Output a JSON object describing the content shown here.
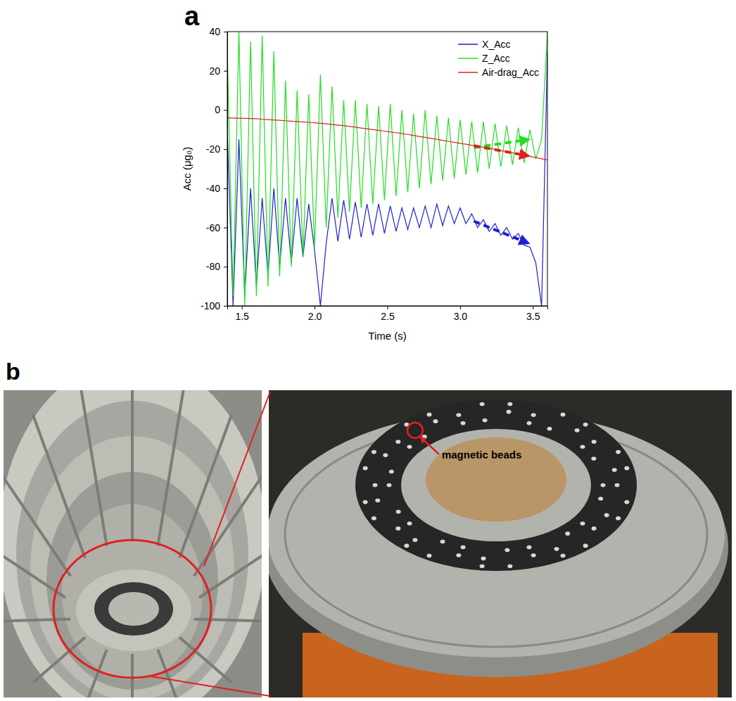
{
  "chart_data": {
    "type": "line",
    "panel_label": "a",
    "x_label": "Time (s)",
    "y_label": "Acc (μg₀)",
    "xlim": [
      1.4,
      3.6
    ],
    "xticks": [
      1.5,
      {
        "value": 2,
        "label": "2.0"
      },
      2.5,
      {
        "value": 3,
        "label": "3.0"
      },
      3.5
    ],
    "ylim": [
      -100,
      40
    ],
    "yticks": [
      -100,
      -80,
      -60,
      -40,
      -20,
      0,
      20,
      40
    ],
    "grid": false,
    "legend": "upper right",
    "x": [
      1.4,
      1.44,
      1.48,
      1.52,
      1.56,
      1.6,
      1.64,
      1.68,
      1.72,
      1.76,
      1.8,
      1.84,
      1.88,
      1.92,
      1.96,
      2,
      2.04,
      2.08,
      2.12,
      2.16,
      2.2,
      2.24,
      2.28,
      2.32,
      2.36,
      2.4,
      2.44,
      2.48,
      2.52,
      2.56,
      2.6,
      2.64,
      2.68,
      2.72,
      2.76,
      2.8,
      2.84,
      2.88,
      2.92,
      2.96,
      3,
      3.04,
      3.08,
      3.12,
      3.16,
      3.2,
      3.24,
      3.28,
      3.32,
      3.36,
      3.4,
      3.44,
      3.48,
      3.52,
      3.56,
      3.6
    ],
    "series": [
      {
        "name": "X_Acc",
        "color": "#1f1fd0",
        "values": [
          -10,
          -100,
          -15,
          -95,
          -40,
          -90,
          -45,
          -85,
          -40,
          -80,
          -45,
          -78,
          -45,
          -75,
          -48,
          -72,
          -100,
          -68,
          -45,
          -67,
          -46,
          -66,
          -47,
          -65,
          -48,
          -64,
          -48,
          -63,
          -49,
          -62,
          -50,
          -61,
          -50,
          -60,
          -49,
          -60,
          -48,
          -59,
          -49,
          -58,
          -50,
          -58,
          -53,
          -60,
          -56,
          -62,
          -58,
          -64,
          -60,
          -66,
          -63,
          -69,
          -70,
          -78,
          -100,
          30
        ]
      },
      {
        "name": "Z_Acc",
        "color": "#22dd22",
        "values": [
          30,
          -95,
          40,
          -100,
          35,
          -95,
          38,
          -90,
          30,
          -85,
          15,
          -80,
          10,
          -75,
          8,
          -70,
          18,
          -60,
          12,
          -55,
          5,
          -52,
          5,
          -50,
          3,
          -48,
          2,
          -46,
          3,
          -44,
          0,
          -42,
          -2,
          -40,
          0,
          -38,
          -3,
          -36,
          -4,
          -35,
          -5,
          -33,
          -6,
          -32,
          -6,
          -30,
          -7,
          -29,
          -8,
          -28,
          -9,
          -27,
          -10,
          -25,
          -15,
          40
        ]
      },
      {
        "name": "Air-drag_Acc",
        "color": "#e02020",
        "values": [
          -4.0,
          -4.1,
          -4.2,
          -4.3,
          -4.4,
          -4.5,
          -4.7,
          -4.9,
          -5.1,
          -5.3,
          -5.5,
          -5.7,
          -5.9,
          -6.1,
          -6.3,
          -6.5,
          -6.8,
          -7.1,
          -7.4,
          -7.7,
          -8.0,
          -8.4,
          -8.8,
          -9.2,
          -9.6,
          -10.0,
          -10.4,
          -10.8,
          -11.2,
          -11.6,
          -12.0,
          -12.5,
          -13.0,
          -13.5,
          -14.0,
          -14.5,
          -15.0,
          -15.5,
          -16.0,
          -16.5,
          -17.0,
          -17.5,
          -18.0,
          -18.5,
          -19.0,
          -19.5,
          -20.1,
          -20.7,
          -21.3,
          -21.9,
          -22.5,
          -23.1,
          -23.7,
          -24.3,
          -24.9,
          -25.5
        ]
      }
    ]
  },
  "panel_b": {
    "panel_label": "b",
    "annotation": "magnetic beads"
  }
}
